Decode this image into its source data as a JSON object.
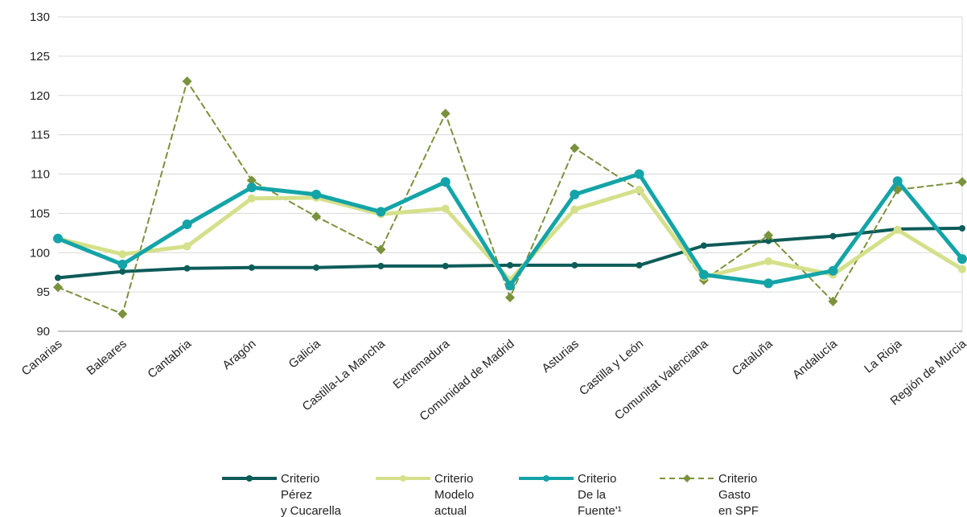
{
  "chart_data": {
    "type": "line",
    "title": "",
    "xlabel": "",
    "ylabel": "",
    "ylim": [
      90,
      130
    ],
    "yticks": [
      90,
      95,
      100,
      105,
      110,
      115,
      120,
      125,
      130
    ],
    "grid": true,
    "legend_position": "bottom",
    "categories": [
      "Canarias",
      "Baleares",
      "Cantabria",
      "Aragón",
      "Galicia",
      "Castilla-La Mancha",
      "Extremadura",
      "Comunidad de Madrid",
      "Asturias",
      "Castilla y León",
      "Comunitat Valenciana",
      "Cataluña",
      "Andalucía",
      "La Rioja",
      "Región de Murcia"
    ],
    "series": [
      {
        "name": "Criterio Pérez y Cucarella",
        "legend_lines": [
          "Criterio",
          "Pérez",
          "y Cucarella"
        ],
        "color": "#0d5c59",
        "style": "solid",
        "marker": "circle",
        "values": [
          96.8,
          97.6,
          98.0,
          98.1,
          98.1,
          98.3,
          98.3,
          98.4,
          98.4,
          98.4,
          100.9,
          101.5,
          102.1,
          103.0,
          103.1
        ]
      },
      {
        "name": "Criterio Modelo actual",
        "legend_lines": [
          "Criterio",
          "Modelo",
          "actual"
        ],
        "color": "#d5e08a",
        "style": "solid",
        "marker": "circle",
        "values": [
          101.8,
          99.8,
          100.8,
          106.9,
          107.0,
          104.9,
          105.6,
          96.5,
          105.5,
          108.0,
          96.9,
          98.9,
          97.2,
          102.9,
          97.9
        ]
      },
      {
        "name": "Criterio De la Fuente'1",
        "legend_lines": [
          "Criterio",
          "De la",
          "Fuente'¹"
        ],
        "color": "#14a4a8",
        "style": "solid",
        "marker": "circle",
        "values": [
          101.8,
          98.5,
          103.6,
          108.3,
          107.4,
          105.2,
          109.0,
          95.8,
          107.4,
          110.0,
          97.2,
          96.1,
          97.7,
          109.1,
          99.2
        ]
      },
      {
        "name": "Criterio Gasto en SPF",
        "legend_lines": [
          "Criterio",
          "Gasto",
          "en SPF"
        ],
        "color": "#7a923c",
        "style": "dashed",
        "marker": "diamond",
        "values": [
          95.6,
          92.2,
          121.8,
          109.2,
          104.6,
          100.4,
          117.7,
          94.3,
          113.3,
          107.9,
          96.5,
          102.2,
          93.8,
          108.0,
          109.0
        ]
      }
    ]
  }
}
